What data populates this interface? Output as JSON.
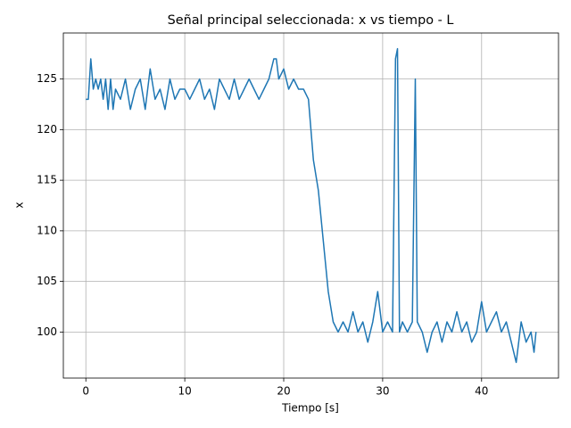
{
  "chart_data": {
    "type": "line",
    "title": "Señal principal seleccionada: x vs tiempo - L",
    "xlabel": "Tiempo [s]",
    "ylabel": "x",
    "color": "#1f77b4",
    "grid": true,
    "xlim": [
      -2.275,
      47.775
    ],
    "ylim": [
      95.45,
      129.55
    ],
    "xticks": [
      0,
      10,
      20,
      30,
      40
    ],
    "yticks": [
      100,
      105,
      110,
      115,
      120,
      125
    ],
    "x": [
      0,
      0.25,
      0.5,
      0.75,
      1,
      1.25,
      1.5,
      1.75,
      2,
      2.25,
      2.5,
      2.75,
      3,
      3.5,
      4,
      4.5,
      5,
      5.5,
      6,
      6.5,
      7,
      7.5,
      8,
      8.5,
      9,
      9.5,
      10,
      10.5,
      11,
      11.5,
      12,
      12.5,
      13,
      13.5,
      14,
      14.5,
      15,
      15.5,
      16,
      16.5,
      17,
      17.5,
      18,
      18.5,
      19,
      19.25,
      19.5,
      20,
      20.5,
      21,
      21.5,
      22,
      22.5,
      23,
      23.5,
      24,
      24.5,
      25,
      25.5,
      26,
      26.5,
      27,
      27.5,
      28,
      28.5,
      29,
      29.5,
      30,
      30.5,
      31,
      31.3,
      31.5,
      31.7,
      32,
      32.5,
      33,
      33.3,
      33.5,
      34,
      34.5,
      35,
      35.5,
      36,
      36.5,
      37,
      37.5,
      38,
      38.5,
      39,
      39.5,
      40,
      40.5,
      41,
      41.5,
      42,
      42.5,
      43,
      43.5,
      44,
      44.5,
      45,
      45.3,
      45.5
    ],
    "values": [
      123,
      123,
      127,
      124,
      125,
      124,
      125,
      123,
      125,
      122,
      125,
      122,
      124,
      123,
      125,
      122,
      124,
      125,
      122,
      126,
      123,
      124,
      122,
      125,
      123,
      124,
      124,
      123,
      124,
      125,
      123,
      124,
      122,
      125,
      124,
      123,
      125,
      123,
      124,
      125,
      124,
      123,
      124,
      125,
      127,
      127,
      125,
      126,
      124,
      125,
      124,
      124,
      123,
      117,
      114,
      109,
      104,
      101,
      100,
      101,
      100,
      102,
      100,
      101,
      99,
      101,
      104,
      100,
      101,
      100,
      127,
      128,
      100,
      101,
      100,
      101,
      125,
      101,
      100,
      98,
      100,
      101,
      99,
      101,
      100,
      102,
      100,
      101,
      99,
      100,
      103,
      100,
      101,
      102,
      100,
      101,
      99,
      97,
      101,
      99,
      100,
      98,
      100
    ]
  }
}
